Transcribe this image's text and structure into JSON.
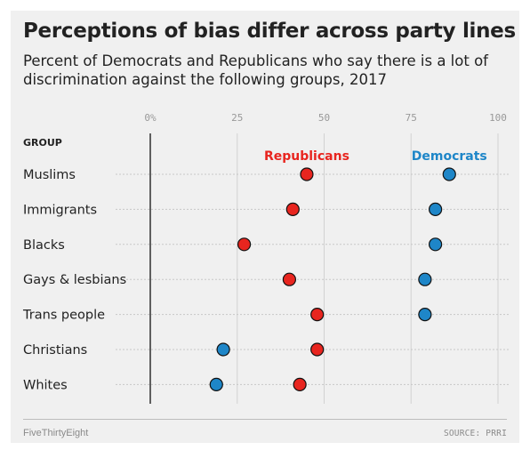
{
  "title": "Perceptions of bias differ across party lines",
  "subtitle": "Percent of Democrats and Republicans who say there is a lot of discrimination against the following groups, 2017",
  "footer": {
    "brand": "FiveThirtyEight",
    "source": "SOURCE: PRRI"
  },
  "colors": {
    "background": "#f0f0f0",
    "Republicans": "#e8251f",
    "Democrats": "#1e86c8"
  },
  "chart_data": {
    "type": "scatter",
    "orientation": "horizontal-dot-plot",
    "group_header": "GROUP",
    "categories": [
      "Muslims",
      "Immigrants",
      "Blacks",
      "Gays & lesbians",
      "Trans people",
      "Christians",
      "Whites"
    ],
    "series": [
      {
        "name": "Republicans",
        "values": [
          45,
          41,
          27,
          40,
          48,
          48,
          43
        ]
      },
      {
        "name": "Democrats",
        "values": [
          86,
          82,
          82,
          79,
          79,
          21,
          19
        ]
      }
    ],
    "xlim": [
      0,
      100
    ],
    "x_ticks": [
      0,
      25,
      50,
      75,
      100
    ],
    "x_tick_labels": [
      "0%",
      "25",
      "50",
      "75",
      "100"
    ],
    "legend": "inline labels above top row",
    "grid": true
  }
}
